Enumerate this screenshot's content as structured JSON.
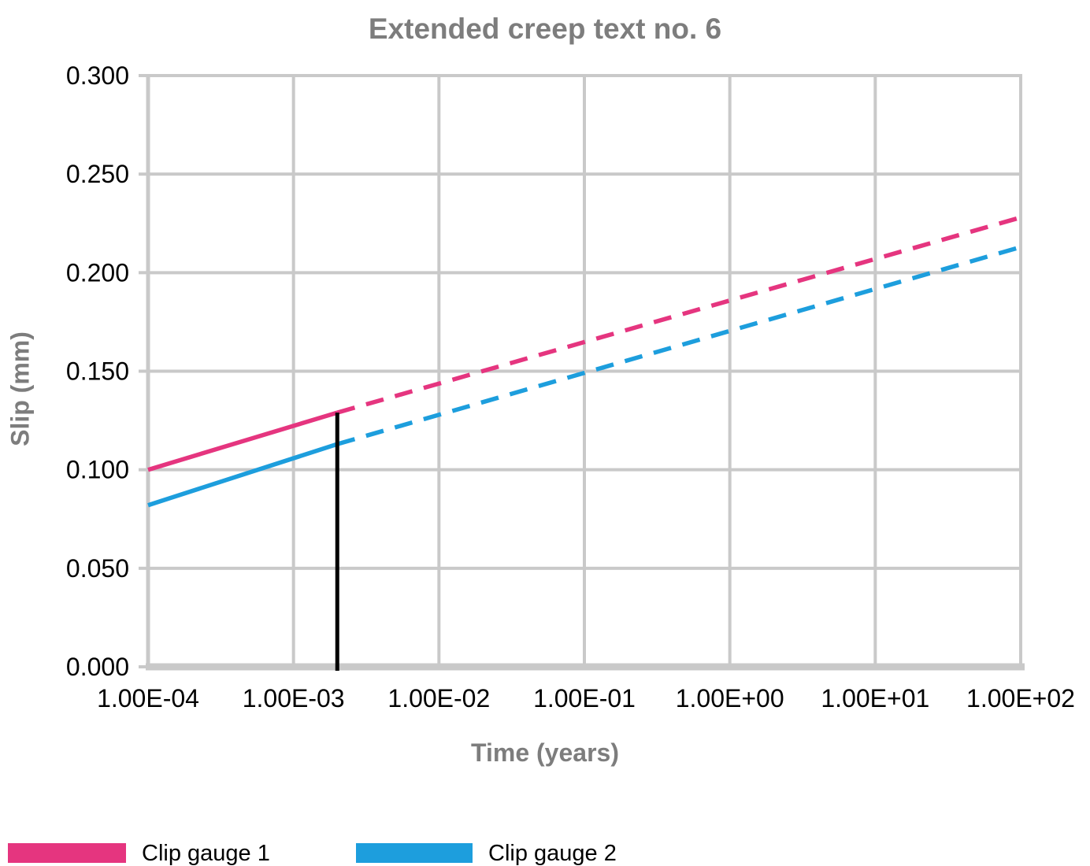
{
  "chart_data": {
    "type": "line",
    "title": "Extended creep text no. 6",
    "xlabel": "Time (years)",
    "ylabel": "Slip (mm)",
    "x_scale": "log",
    "x_range": [
      0.0001,
      100
    ],
    "y_range": [
      0.0,
      0.3
    ],
    "grid": true,
    "legend_position": "bottom-left",
    "xtick_values": [
      0.0001,
      0.001,
      0.01,
      0.1,
      1,
      10,
      100
    ],
    "xticklabels": [
      "1.00E-04",
      "1.00E-03",
      "1.00E-02",
      "1.00E-01",
      "1.00E+00",
      "1.00E+01",
      "1.00E+02"
    ],
    "ytick_values": [
      0.0,
      0.05,
      0.1,
      0.15,
      0.2,
      0.25,
      0.3
    ],
    "yticklabels": [
      "0.000",
      "0.050",
      "0.100",
      "0.150",
      "0.200",
      "0.250",
      "0.300"
    ],
    "series": [
      {
        "name": "Clip gauge 1",
        "color": "#e5357f",
        "segments": [
          {
            "style": "solid",
            "points": [
              [
                0.0001,
                0.1
              ],
              [
                0.002,
                0.129
              ]
            ]
          },
          {
            "style": "dashed",
            "points": [
              [
                0.002,
                0.129
              ],
              [
                100,
                0.228
              ]
            ]
          }
        ]
      },
      {
        "name": "Clip gauge 2",
        "color": "#1d9edd",
        "segments": [
          {
            "style": "solid",
            "points": [
              [
                0.0001,
                0.082
              ],
              [
                0.002,
                0.113
              ]
            ]
          },
          {
            "style": "dashed",
            "points": [
              [
                0.002,
                0.113
              ],
              [
                100,
                0.213
              ]
            ]
          }
        ]
      }
    ],
    "annotations": [
      {
        "type": "vline",
        "x": 0.002,
        "y_from": 0.0,
        "y_to": 0.129,
        "color": "#000000",
        "note": "end of measured data / start of extrapolation"
      }
    ],
    "colors": {
      "grid": "#c9c9c9",
      "axis": "#c9c9c9",
      "heading_text": "#7d7d7d",
      "tick_text": "#000000",
      "series1": "#e5357f",
      "series2": "#1d9edd",
      "marker_line": "#000000"
    }
  }
}
